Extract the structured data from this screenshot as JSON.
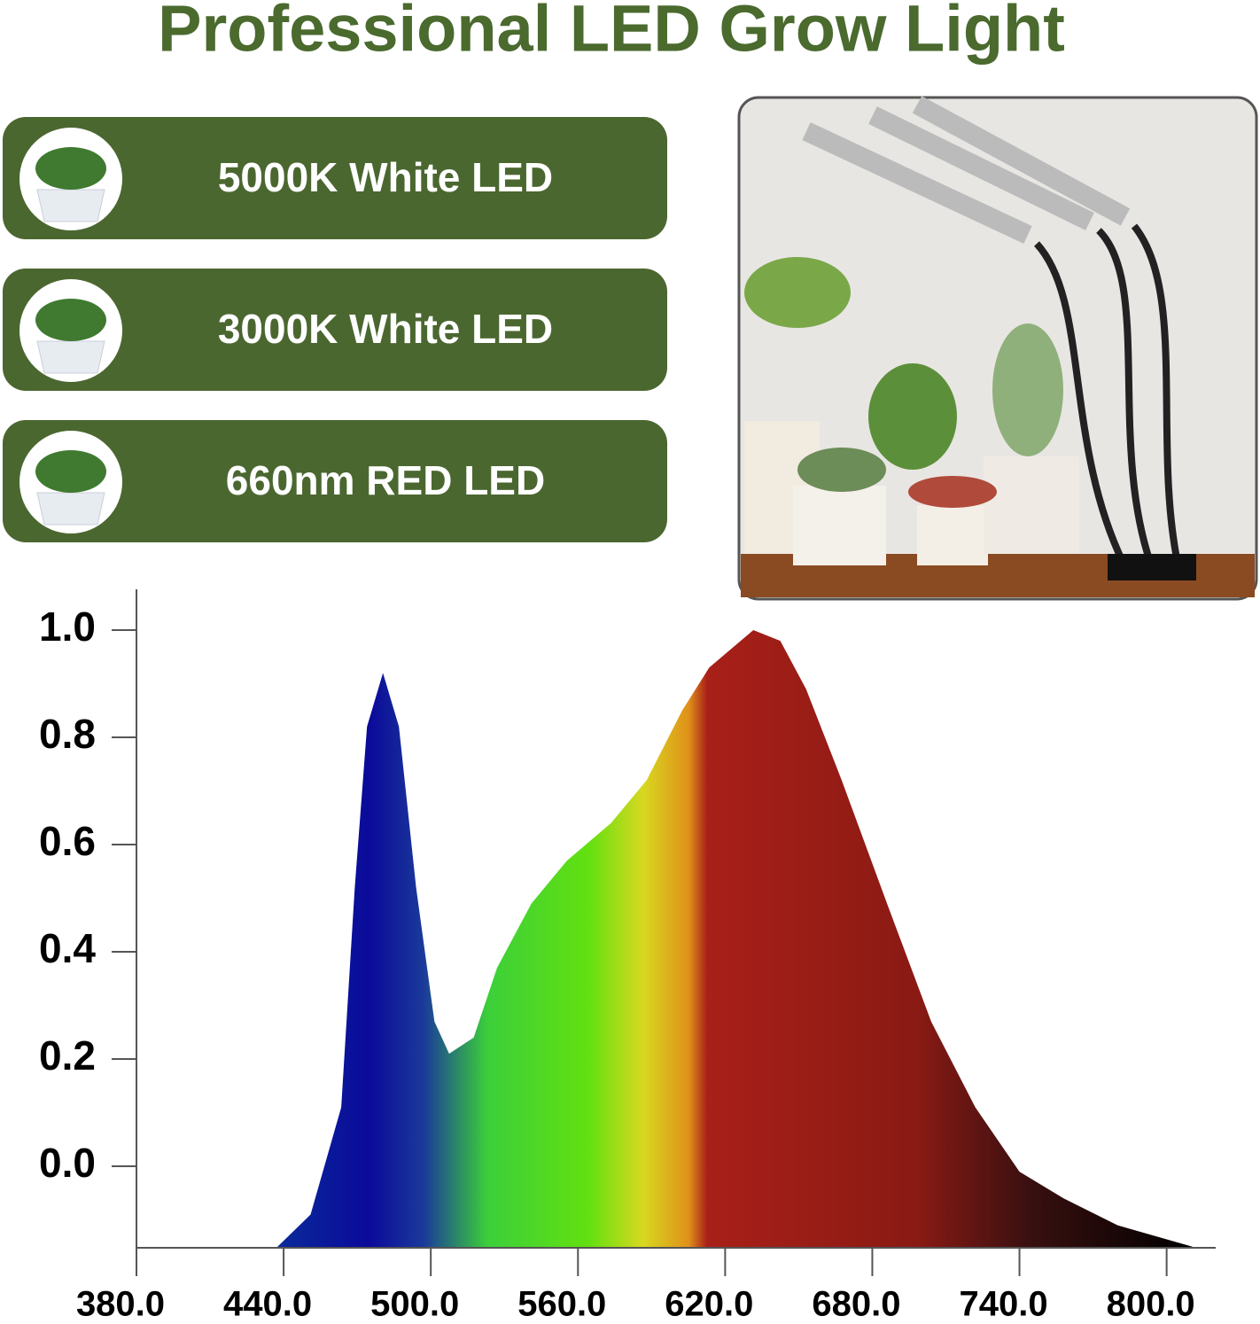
{
  "title": "Professional LED Grow Light",
  "features": [
    "5000K White LED",
    "3000K White LED",
    "660nm RED LED"
  ],
  "chart_data": {
    "type": "area",
    "x": [
      437.5,
      451,
      463.5,
      469,
      474,
      480.5,
      487,
      494,
      501.5,
      507.5,
      517.5,
      527,
      541,
      555.5,
      573.5,
      588,
      602.5,
      613.5,
      631.5,
      642.5,
      653,
      667.5,
      686,
      704,
      722,
      740,
      758,
      780,
      810.5
    ],
    "values": [
      -0.15,
      -0.09,
      0.11,
      0.52,
      0.82,
      0.92,
      0.82,
      0.52,
      0.27,
      0.21,
      0.24,
      0.37,
      0.49,
      0.57,
      0.64,
      0.72,
      0.85,
      0.93,
      1.0,
      0.98,
      0.89,
      0.72,
      0.49,
      0.27,
      0.11,
      -0.01,
      -0.06,
      -0.11,
      -0.15
    ],
    "xlim": [
      380,
      820
    ],
    "ylim": [
      -0.152,
      1.076
    ],
    "xticks": [
      {
        "value": 380,
        "label": "380.0"
      },
      {
        "value": 440,
        "label": "440.0"
      },
      {
        "value": 500,
        "label": "500.0"
      },
      {
        "value": 560,
        "label": "560.0"
      },
      {
        "value": 620,
        "label": "620.0"
      },
      {
        "value": 680,
        "label": "680.0"
      },
      {
        "value": 740,
        "label": "740.0"
      },
      {
        "value": 800,
        "label": "800.0"
      }
    ],
    "yticks": [
      {
        "value": 0,
        "label": "0.0"
      },
      {
        "value": 0.2,
        "label": "0.2"
      },
      {
        "value": 0.4,
        "label": "0.4"
      },
      {
        "value": 0.6,
        "label": "0.6"
      },
      {
        "value": 0.8,
        "label": "0.8"
      },
      {
        "value": 1,
        "label": "1.0"
      }
    ]
  }
}
